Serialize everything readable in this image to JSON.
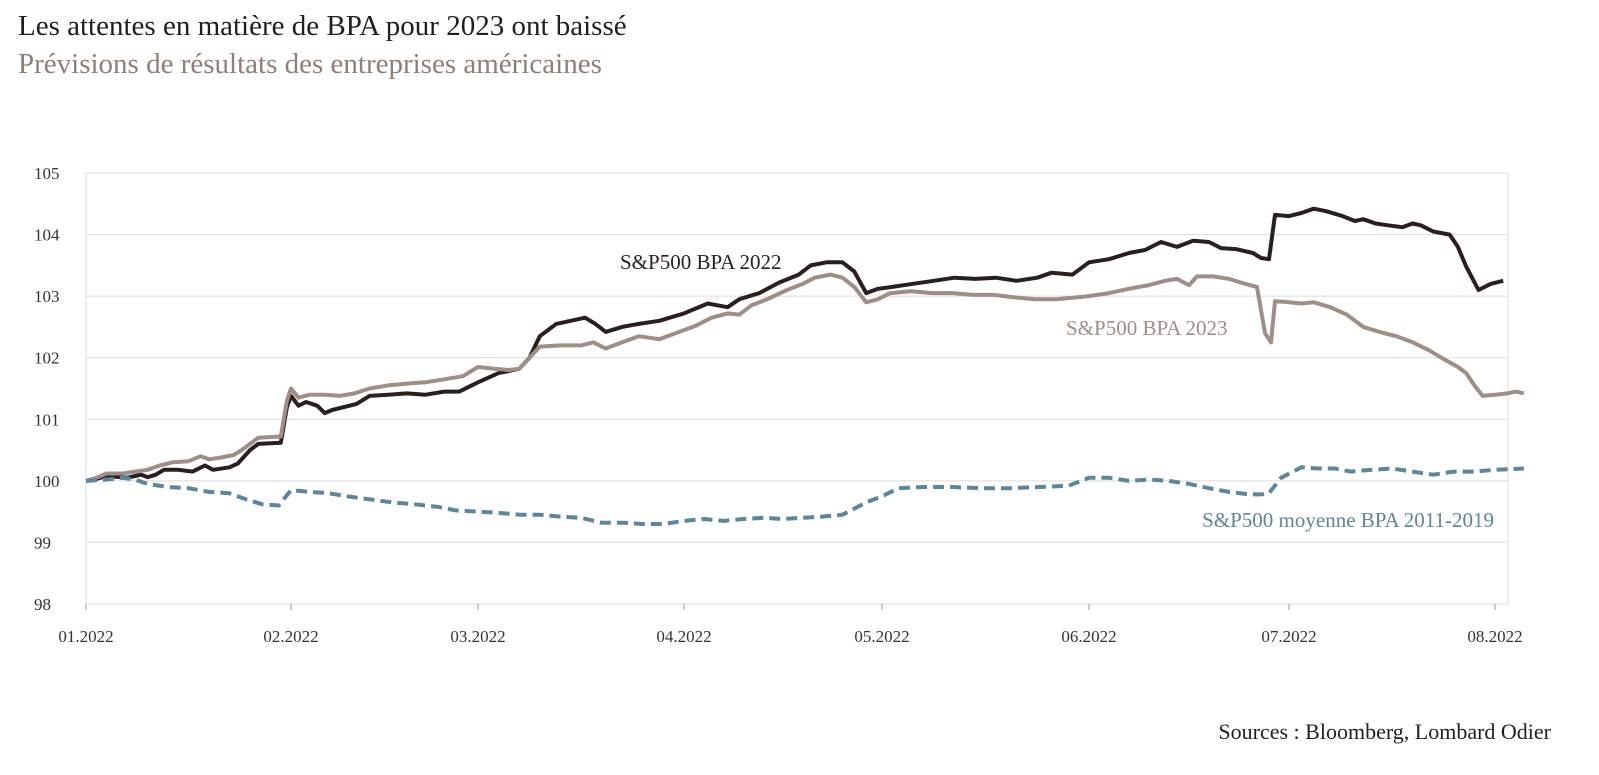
{
  "header": {
    "title": "Les attentes en matière de BPA pour 2023 ont baissé",
    "subtitle": "Prévisions de résultats des entreprises américaines"
  },
  "footer": {
    "source": "Sources : Bloomberg, Lombard Odier"
  },
  "chart_data": {
    "type": "line",
    "title": "Les attentes en matière de BPA pour 2023 ont baissé",
    "subtitle": "Prévisions de résultats des entreprises américaines",
    "xlabel": "",
    "ylabel": "",
    "ylim": [
      98,
      105
    ],
    "yticks": [
      98,
      99,
      100,
      101,
      102,
      103,
      104,
      105
    ],
    "xticks": [
      {
        "label": "01.2022",
        "m": 0
      },
      {
        "label": "02.2022",
        "m": 1
      },
      {
        "label": "03.2022",
        "m": 2
      },
      {
        "label": "04.2022",
        "m": 3
      },
      {
        "label": "05.2022",
        "m": 4
      },
      {
        "label": "06.2022",
        "m": 5
      },
      {
        "label": "07.2022",
        "m": 6
      },
      {
        "label": "08.2022",
        "m": 7
      }
    ],
    "x_note": "m = months since 01.2022",
    "grid": true,
    "series": [
      {
        "name": "S&P500 BPA 2022",
        "color": "#2a1f1f",
        "dash": "solid",
        "points": [
          [
            0,
            100.0
          ],
          [
            0.04,
            100.02
          ],
          [
            0.1,
            100.08
          ],
          [
            0.2,
            100.05
          ],
          [
            0.27,
            100.1
          ],
          [
            0.3,
            100.06
          ],
          [
            0.34,
            100.1
          ],
          [
            0.38,
            100.18
          ],
          [
            0.45,
            100.18
          ],
          [
            0.52,
            100.15
          ],
          [
            0.58,
            100.25
          ],
          [
            0.62,
            100.18
          ],
          [
            0.7,
            100.22
          ],
          [
            0.74,
            100.28
          ],
          [
            0.8,
            100.5
          ],
          [
            0.84,
            100.6
          ],
          [
            0.95,
            100.62
          ],
          [
            0.98,
            101.2
          ],
          [
            1.0,
            101.38
          ],
          [
            1.04,
            101.22
          ],
          [
            1.08,
            101.28
          ],
          [
            1.14,
            101.22
          ],
          [
            1.18,
            101.1
          ],
          [
            1.22,
            101.15
          ],
          [
            1.35,
            101.25
          ],
          [
            1.42,
            101.38
          ],
          [
            1.52,
            101.4
          ],
          [
            1.62,
            101.42
          ],
          [
            1.72,
            101.4
          ],
          [
            1.82,
            101.45
          ],
          [
            1.9,
            101.45
          ],
          [
            2.0,
            101.6
          ],
          [
            2.1,
            101.75
          ],
          [
            2.2,
            101.82
          ],
          [
            2.25,
            102.0
          ],
          [
            2.3,
            102.35
          ],
          [
            2.38,
            102.55
          ],
          [
            2.45,
            102.6
          ],
          [
            2.52,
            102.65
          ],
          [
            2.57,
            102.55
          ],
          [
            2.62,
            102.42
          ],
          [
            2.7,
            102.5
          ],
          [
            2.78,
            102.55
          ],
          [
            2.88,
            102.6
          ],
          [
            3.0,
            102.72
          ],
          [
            3.12,
            102.88
          ],
          [
            3.22,
            102.82
          ],
          [
            3.28,
            102.95
          ],
          [
            3.38,
            103.05
          ],
          [
            3.48,
            103.22
          ],
          [
            3.58,
            103.35
          ],
          [
            3.64,
            103.5
          ],
          [
            3.72,
            103.55
          ],
          [
            3.8,
            103.55
          ],
          [
            3.86,
            103.4
          ],
          [
            3.92,
            103.05
          ],
          [
            3.98,
            103.12
          ],
          [
            4.05,
            103.15
          ],
          [
            4.15,
            103.2
          ],
          [
            4.25,
            103.25
          ],
          [
            4.35,
            103.3
          ],
          [
            4.45,
            103.28
          ],
          [
            4.55,
            103.3
          ],
          [
            4.65,
            103.25
          ],
          [
            4.75,
            103.3
          ],
          [
            4.82,
            103.38
          ],
          [
            4.92,
            103.35
          ],
          [
            5.0,
            103.55
          ],
          [
            5.1,
            103.6
          ],
          [
            5.2,
            103.7
          ],
          [
            5.28,
            103.75
          ],
          [
            5.36,
            103.88
          ],
          [
            5.44,
            103.8
          ],
          [
            5.52,
            103.9
          ],
          [
            5.6,
            103.88
          ],
          [
            5.66,
            103.78
          ],
          [
            5.74,
            103.76
          ],
          [
            5.82,
            103.7
          ],
          [
            5.86,
            103.62
          ],
          [
            5.9,
            103.6
          ],
          [
            5.93,
            104.32
          ],
          [
            6.0,
            104.3
          ],
          [
            6.06,
            104.35
          ],
          [
            6.12,
            104.42
          ],
          [
            6.18,
            104.38
          ],
          [
            6.26,
            104.3
          ],
          [
            6.32,
            104.22
          ],
          [
            6.36,
            104.25
          ],
          [
            6.42,
            104.18
          ],
          [
            6.48,
            104.15
          ],
          [
            6.55,
            104.12
          ],
          [
            6.6,
            104.18
          ],
          [
            6.64,
            104.15
          ],
          [
            6.7,
            104.05
          ],
          [
            6.78,
            104.0
          ],
          [
            6.82,
            103.8
          ],
          [
            6.86,
            103.48
          ],
          [
            6.92,
            103.1
          ],
          [
            6.98,
            103.2
          ],
          [
            7.04,
            103.25
          ]
        ]
      },
      {
        "name": "S&P500 BPA 2023",
        "color": "#9d8f87",
        "dash": "solid",
        "points": [
          [
            0,
            100.0
          ],
          [
            0.05,
            100.05
          ],
          [
            0.1,
            100.12
          ],
          [
            0.18,
            100.12
          ],
          [
            0.24,
            100.15
          ],
          [
            0.3,
            100.18
          ],
          [
            0.36,
            100.25
          ],
          [
            0.42,
            100.3
          ],
          [
            0.5,
            100.32
          ],
          [
            0.56,
            100.4
          ],
          [
            0.6,
            100.35
          ],
          [
            0.66,
            100.38
          ],
          [
            0.72,
            100.42
          ],
          [
            0.76,
            100.5
          ],
          [
            0.8,
            100.6
          ],
          [
            0.84,
            100.7
          ],
          [
            0.95,
            100.72
          ],
          [
            0.98,
            101.3
          ],
          [
            1.0,
            101.5
          ],
          [
            1.04,
            101.35
          ],
          [
            1.1,
            101.4
          ],
          [
            1.18,
            101.4
          ],
          [
            1.26,
            101.38
          ],
          [
            1.34,
            101.42
          ],
          [
            1.42,
            101.5
          ],
          [
            1.52,
            101.55
          ],
          [
            1.62,
            101.58
          ],
          [
            1.72,
            101.6
          ],
          [
            1.82,
            101.65
          ],
          [
            1.92,
            101.7
          ],
          [
            2.0,
            101.85
          ],
          [
            2.08,
            101.82
          ],
          [
            2.15,
            101.8
          ],
          [
            2.2,
            101.82
          ],
          [
            2.25,
            102.0
          ],
          [
            2.3,
            102.18
          ],
          [
            2.4,
            102.2
          ],
          [
            2.5,
            102.2
          ],
          [
            2.56,
            102.25
          ],
          [
            2.62,
            102.15
          ],
          [
            2.7,
            102.25
          ],
          [
            2.78,
            102.35
          ],
          [
            2.88,
            102.3
          ],
          [
            2.96,
            102.4
          ],
          [
            3.06,
            102.52
          ],
          [
            3.14,
            102.65
          ],
          [
            3.22,
            102.72
          ],
          [
            3.28,
            102.7
          ],
          [
            3.34,
            102.85
          ],
          [
            3.42,
            102.95
          ],
          [
            3.52,
            103.1
          ],
          [
            3.6,
            103.2
          ],
          [
            3.66,
            103.3
          ],
          [
            3.74,
            103.35
          ],
          [
            3.8,
            103.3
          ],
          [
            3.86,
            103.15
          ],
          [
            3.92,
            102.9
          ],
          [
            3.98,
            102.95
          ],
          [
            4.04,
            103.05
          ],
          [
            4.14,
            103.08
          ],
          [
            4.24,
            103.05
          ],
          [
            4.34,
            103.05
          ],
          [
            4.44,
            103.02
          ],
          [
            4.54,
            103.02
          ],
          [
            4.64,
            102.98
          ],
          [
            4.74,
            102.95
          ],
          [
            4.84,
            102.95
          ],
          [
            4.94,
            102.98
          ],
          [
            5.0,
            103.0
          ],
          [
            5.1,
            103.05
          ],
          [
            5.2,
            103.12
          ],
          [
            5.3,
            103.18
          ],
          [
            5.38,
            103.25
          ],
          [
            5.44,
            103.28
          ],
          [
            5.5,
            103.18
          ],
          [
            5.54,
            103.32
          ],
          [
            5.62,
            103.32
          ],
          [
            5.7,
            103.28
          ],
          [
            5.78,
            103.2
          ],
          [
            5.84,
            103.15
          ],
          [
            5.88,
            102.4
          ],
          [
            5.91,
            102.25
          ],
          [
            5.93,
            102.92
          ],
          [
            6.0,
            102.9
          ],
          [
            6.06,
            102.88
          ],
          [
            6.12,
            102.9
          ],
          [
            6.2,
            102.82
          ],
          [
            6.28,
            102.7
          ],
          [
            6.36,
            102.5
          ],
          [
            6.44,
            102.42
          ],
          [
            6.52,
            102.35
          ],
          [
            6.6,
            102.25
          ],
          [
            6.68,
            102.12
          ],
          [
            6.74,
            102.0
          ],
          [
            6.82,
            101.85
          ],
          [
            6.86,
            101.75
          ],
          [
            6.9,
            101.55
          ],
          [
            6.94,
            101.38
          ],
          [
            7.0,
            101.4
          ],
          [
            7.06,
            101.42
          ],
          [
            7.1,
            101.45
          ],
          [
            7.14,
            101.42
          ]
        ]
      },
      {
        "name": "S&P500 moyenne BPA 2011-2019",
        "color": "#5f8598",
        "dash": "dashed",
        "points": [
          [
            0,
            100.0
          ],
          [
            0.1,
            100.02
          ],
          [
            0.18,
            100.05
          ],
          [
            0.24,
            100.02
          ],
          [
            0.3,
            99.95
          ],
          [
            0.4,
            99.9
          ],
          [
            0.5,
            99.88
          ],
          [
            0.6,
            99.82
          ],
          [
            0.7,
            99.8
          ],
          [
            0.78,
            99.7
          ],
          [
            0.86,
            99.62
          ],
          [
            0.94,
            99.6
          ],
          [
            1.0,
            99.85
          ],
          [
            1.1,
            99.82
          ],
          [
            1.2,
            99.8
          ],
          [
            1.3,
            99.75
          ],
          [
            1.42,
            99.7
          ],
          [
            1.54,
            99.65
          ],
          [
            1.66,
            99.62
          ],
          [
            1.78,
            99.58
          ],
          [
            1.88,
            99.52
          ],
          [
            2.0,
            99.5
          ],
          [
            2.1,
            99.48
          ],
          [
            2.2,
            99.45
          ],
          [
            2.3,
            99.45
          ],
          [
            2.4,
            99.42
          ],
          [
            2.5,
            99.4
          ],
          [
            2.6,
            99.32
          ],
          [
            2.7,
            99.32
          ],
          [
            2.8,
            99.3
          ],
          [
            2.9,
            99.3
          ],
          [
            3.0,
            99.35
          ],
          [
            3.1,
            99.38
          ],
          [
            3.2,
            99.35
          ],
          [
            3.3,
            99.38
          ],
          [
            3.4,
            99.4
          ],
          [
            3.5,
            99.38
          ],
          [
            3.6,
            99.4
          ],
          [
            3.7,
            99.42
          ],
          [
            3.8,
            99.45
          ],
          [
            3.86,
            99.55
          ],
          [
            3.92,
            99.65
          ],
          [
            4.0,
            99.75
          ],
          [
            4.08,
            99.88
          ],
          [
            4.2,
            99.9
          ],
          [
            4.34,
            99.9
          ],
          [
            4.48,
            99.88
          ],
          [
            4.62,
            99.88
          ],
          [
            4.76,
            99.9
          ],
          [
            4.9,
            99.92
          ],
          [
            5.0,
            100.05
          ],
          [
            5.1,
            100.05
          ],
          [
            5.2,
            100.0
          ],
          [
            5.3,
            100.02
          ],
          [
            5.4,
            100.0
          ],
          [
            5.5,
            99.95
          ],
          [
            5.6,
            99.88
          ],
          [
            5.7,
            99.82
          ],
          [
            5.8,
            99.78
          ],
          [
            5.86,
            99.78
          ],
          [
            5.9,
            99.8
          ],
          [
            5.96,
            100.05
          ],
          [
            6.06,
            100.22
          ],
          [
            6.14,
            100.2
          ],
          [
            6.22,
            100.2
          ],
          [
            6.3,
            100.15
          ],
          [
            6.4,
            100.18
          ],
          [
            6.5,
            100.2
          ],
          [
            6.6,
            100.15
          ],
          [
            6.7,
            100.1
          ],
          [
            6.8,
            100.15
          ],
          [
            6.9,
            100.15
          ],
          [
            7.0,
            100.18
          ],
          [
            7.14,
            100.2
          ]
        ]
      }
    ]
  }
}
